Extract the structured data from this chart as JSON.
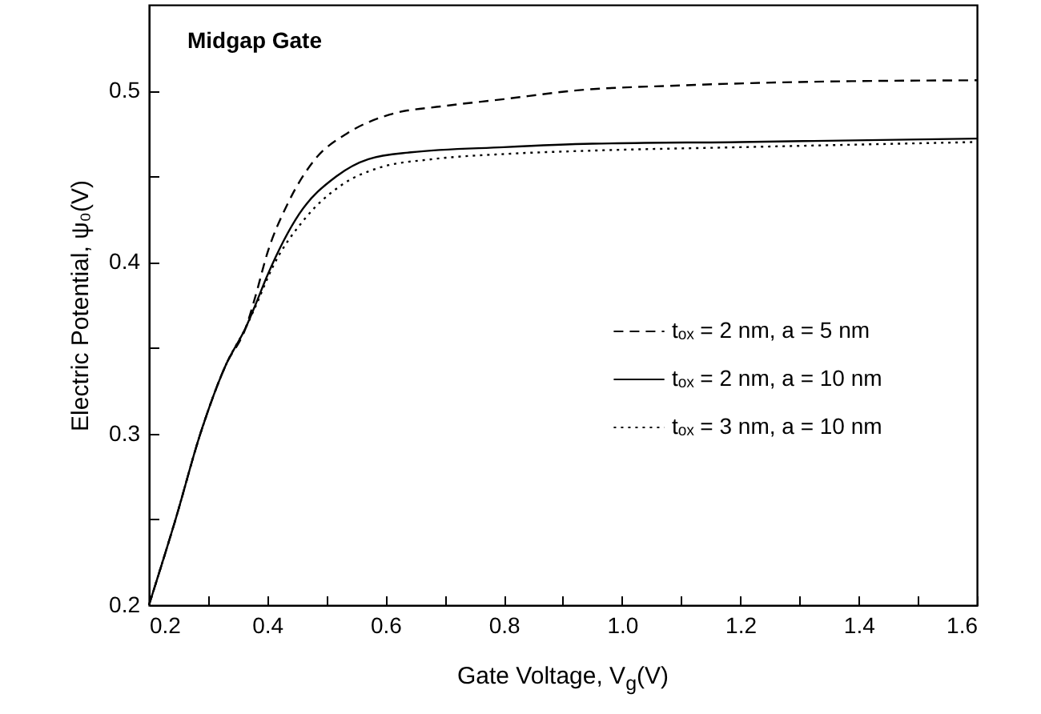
{
  "chart_data": {
    "type": "line",
    "xlabel": "Gate Voltage, V$_{g}$(V)",
    "ylabel": "Electric Potential, ψ₀(V)",
    "annotations": [
      "Midgap Gate"
    ],
    "xlim": [
      0.2,
      1.6
    ],
    "ylim": [
      0.2,
      0.55
    ],
    "xticks": [
      0.2,
      {
        "value": 0.3,
        "label": null
      },
      0.4,
      {
        "value": 0.5,
        "label": null
      },
      0.6,
      {
        "value": 0.7,
        "label": null
      },
      0.8,
      {
        "value": 0.9,
        "label": null
      },
      {
        "value": 1,
        "label": "1.0"
      },
      {
        "value": 1.1,
        "label": null
      },
      1.2,
      {
        "value": 1.3,
        "label": null
      },
      1.4,
      {
        "value": 1.5,
        "label": null
      },
      1.6
    ],
    "yticks": [
      0.2,
      {
        "value": 0.25,
        "label": null
      },
      0.3,
      {
        "value": 0.35,
        "label": null
      },
      0.4,
      {
        "value": 0.45,
        "label": null
      },
      0.5
    ],
    "grid": false,
    "legend": "right",
    "marker": "none",
    "series": [
      {
        "name": "tₒₓ = 2 nm, a = 5 nm",
        "color": "#000000",
        "line_style": "dashed",
        "x": [
          0.2,
          0.245,
          0.287,
          0.33,
          0.364,
          0.38,
          0.4,
          0.436,
          0.481,
          0.535,
          0.607,
          0.7,
          0.8,
          0.92,
          1.1,
          1.3,
          1.6
        ],
        "values": [
          0.2,
          0.25,
          0.3,
          0.34,
          0.362,
          0.38,
          0.405,
          0.435,
          0.46,
          0.475,
          0.486,
          0.491,
          0.495,
          0.5,
          0.503,
          0.505,
          0.506
        ]
      },
      {
        "name": "tₒₓ = 2 nm, a = 10 nm",
        "color": "#000000",
        "line_style": "solid",
        "x": [
          0.2,
          0.245,
          0.287,
          0.33,
          0.364,
          0.38,
          0.4,
          0.454,
          0.517,
          0.571,
          0.643,
          0.8,
          0.95,
          1.2,
          1.6
        ],
        "values": [
          0.2,
          0.25,
          0.3,
          0.34,
          0.362,
          0.375,
          0.392,
          0.428,
          0.45,
          0.46,
          0.464,
          0.467,
          0.469,
          0.47,
          0.472
        ]
      },
      {
        "name": "tₒₓ = 3 nm, a = 10 nm",
        "color": "#000000",
        "line_style": "dotted",
        "x": [
          0.2,
          0.245,
          0.287,
          0.33,
          0.364,
          0.38,
          0.409,
          0.463,
          0.526,
          0.589,
          0.679,
          0.8,
          0.95,
          1.2,
          1.6
        ],
        "values": [
          0.2,
          0.25,
          0.3,
          0.34,
          0.362,
          0.374,
          0.397,
          0.425,
          0.445,
          0.455,
          0.46,
          0.463,
          0.465,
          0.467,
          0.47
        ]
      }
    ]
  }
}
